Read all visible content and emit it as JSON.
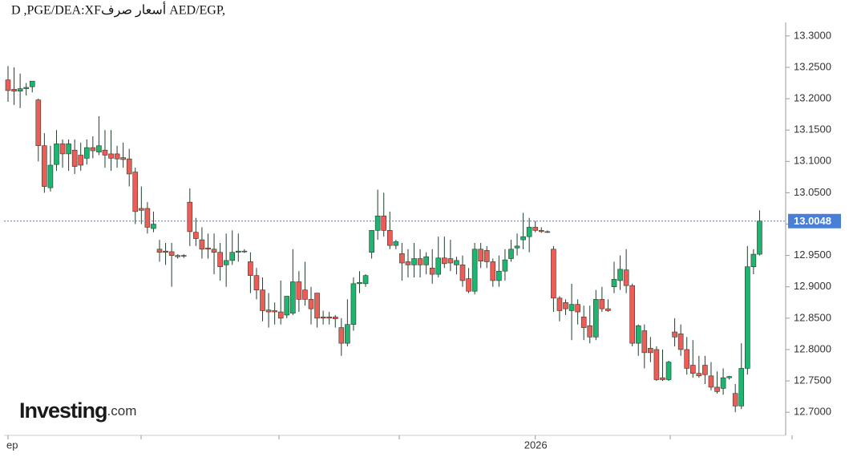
{
  "chart_data": {
    "type": "candlestick",
    "title": "D ,PGE/DEA:XFأسعار صرف AED/EGP,",
    "watermark": "Investing",
    "watermark_suffix": ".com",
    "categories": [
      "ep",
      null,
      null,
      null,
      null,
      null,
      null,
      null,
      null,
      null,
      null,
      null,
      null,
      null,
      null,
      null,
      null,
      null,
      null,
      null,
      null,
      null,
      null,
      null,
      null,
      null,
      null,
      null,
      null,
      null,
      null,
      null,
      null,
      null,
      null,
      null,
      null,
      null,
      null,
      null,
      null,
      null,
      null,
      null,
      null,
      null,
      null,
      null,
      null,
      null,
      null,
      null,
      null,
      null,
      null,
      null,
      null,
      null,
      null,
      null,
      null,
      null,
      null,
      null,
      null,
      null,
      null,
      null,
      null,
      null,
      null,
      null,
      null,
      null,
      null,
      null,
      null,
      null,
      null,
      null,
      null,
      null,
      null,
      null,
      null,
      null,
      null,
      "2026",
      null,
      null,
      null,
      null,
      null,
      null,
      null,
      null,
      null,
      null,
      null,
      null,
      null,
      null,
      null,
      null,
      null,
      null,
      null,
      null,
      null,
      null,
      null,
      null,
      null,
      null,
      null,
      null,
      null,
      null,
      null,
      null,
      null,
      null,
      null,
      null,
      null
    ],
    "open": [
      13.23,
      13.215,
      13.212,
      13.216,
      13.219,
      13.198,
      13.125,
      13.058,
      13.095,
      13.128,
      13.112,
      13.118,
      13.11,
      13.105,
      13.122,
      13.115,
      13.118,
      13.112,
      13.112,
      13.106,
      13.104,
      13.083,
      13.025,
      13.025,
      12.993,
      12.96,
      12.957,
      12.956,
      12.95,
      12.95,
      13.035,
      12.987,
      12.975,
      12.962,
      12.96,
      12.955,
      12.935,
      12.942,
      12.955,
      12.957,
      12.94,
      12.918,
      12.895,
      12.863,
      12.862,
      12.86,
      12.855,
      12.858,
      12.908,
      12.895,
      12.88,
      12.89,
      12.852,
      12.852,
      12.852,
      12.835,
      12.81,
      12.84,
      12.905,
      12.905,
      12.955,
      12.99,
      13.013,
      12.99,
      12.966,
      12.953,
      12.94,
      12.935,
      12.945,
      12.935,
      12.93,
      12.92,
      12.946,
      12.945,
      12.935,
      12.935,
      12.913,
      12.893,
      12.96,
      12.958,
      12.94,
      12.91,
      12.925,
      12.945,
      12.962,
      12.975,
      12.98,
      12.995,
      12.99,
      12.988,
      12.96,
      12.882,
      12.875,
      12.862,
      12.872,
      12.852,
      12.838,
      12.82,
      12.88,
      12.865,
      12.9,
      12.91,
      12.927,
      12.902,
      12.81,
      12.83,
      12.802,
      12.8,
      12.755,
      12.752,
      12.828,
      12.825,
      12.8,
      12.775,
      12.762,
      12.775,
      12.758,
      12.74,
      12.738,
      12.755,
      12.73,
      12.71,
      12.77,
      12.932,
      12.952
    ],
    "high": [
      13.252,
      13.25,
      13.24,
      13.225,
      13.228,
      13.2,
      13.145,
      13.125,
      13.15,
      13.135,
      13.135,
      13.135,
      13.13,
      13.135,
      13.14,
      13.172,
      13.15,
      13.15,
      13.125,
      13.13,
      13.12,
      13.09,
      13.06,
      13.035,
      13.02,
      12.975,
      12.97,
      12.97,
      12.952,
      12.952,
      13.057,
      13.01,
      12.995,
      12.985,
      12.985,
      12.97,
      12.985,
      12.99,
      12.985,
      12.96,
      12.955,
      12.93,
      12.915,
      12.89,
      12.875,
      12.91,
      12.88,
      12.96,
      12.925,
      12.94,
      12.9,
      12.89,
      12.862,
      12.86,
      12.855,
      12.85,
      12.88,
      12.915,
      12.925,
      12.92,
      12.99,
      13.055,
      13.05,
      13.02,
      12.975,
      12.97,
      12.96,
      12.97,
      12.96,
      12.955,
      12.96,
      12.98,
      12.98,
      12.975,
      12.948,
      12.95,
      12.93,
      12.97,
      12.97,
      12.965,
      12.945,
      12.95,
      12.96,
      12.975,
      12.985,
      13.018,
      13.01,
      13.005,
      12.995,
      12.99,
      12.965,
      12.885,
      12.88,
      12.905,
      12.88,
      12.87,
      12.87,
      12.895,
      12.9,
      12.88,
      12.94,
      12.95,
      12.96,
      12.905,
      12.84,
      12.84,
      12.82,
      12.805,
      12.8,
      12.782,
      12.85,
      12.84,
      12.82,
      12.815,
      12.79,
      12.79,
      12.78,
      12.765,
      12.77,
      12.758,
      12.745,
      12.81,
      12.965,
      12.96,
      13.022
    ],
    "low": [
      13.195,
      13.19,
      13.185,
      13.205,
      13.21,
      13.1,
      13.05,
      13.052,
      13.085,
      13.09,
      13.085,
      13.08,
      13.085,
      13.095,
      13.105,
      13.11,
      13.09,
      13.085,
      13.09,
      13.09,
      13.06,
      13.0,
      13.0,
      12.985,
      12.987,
      12.94,
      12.935,
      12.9,
      12.945,
      12.946,
      12.965,
      12.965,
      12.945,
      12.945,
      12.92,
      12.91,
      12.9,
      12.935,
      12.94,
      12.954,
      12.89,
      12.88,
      12.845,
      12.835,
      12.84,
      12.84,
      12.85,
      12.855,
      12.86,
      12.87,
      12.84,
      12.835,
      12.84,
      12.84,
      12.835,
      12.79,
      12.805,
      12.83,
      12.89,
      12.9,
      12.945,
      12.975,
      12.98,
      12.96,
      12.96,
      12.91,
      12.915,
      12.915,
      12.915,
      12.92,
      12.905,
      12.915,
      12.93,
      12.925,
      12.92,
      12.9,
      12.89,
      12.888,
      12.93,
      12.93,
      12.9,
      12.9,
      12.91,
      12.94,
      12.95,
      12.96,
      12.955,
      12.987,
      12.986,
      12.986,
      12.86,
      12.845,
      12.855,
      12.815,
      12.84,
      12.815,
      12.81,
      12.815,
      12.86,
      12.86,
      12.89,
      12.895,
      12.89,
      12.805,
      12.79,
      12.77,
      12.78,
      12.75,
      12.75,
      12.75,
      12.805,
      12.79,
      12.76,
      12.755,
      12.755,
      12.745,
      12.735,
      12.73,
      12.728,
      12.752,
      12.7,
      12.705,
      12.76,
      12.92,
      12.95
    ],
    "close": [
      13.213,
      13.212,
      13.216,
      13.218,
      13.228,
      13.125,
      13.06,
      13.094,
      13.128,
      13.112,
      13.128,
      13.092,
      13.094,
      13.122,
      13.117,
      13.125,
      13.11,
      13.105,
      13.104,
      13.103,
      13.08,
      13.02,
      13.022,
      12.995,
      13.0,
      12.955,
      12.955,
      12.95,
      12.948,
      12.949,
      12.988,
      12.977,
      12.96,
      12.96,
      12.955,
      12.932,
      12.942,
      12.955,
      12.957,
      12.956,
      12.918,
      12.895,
      12.862,
      12.86,
      12.86,
      12.85,
      12.885,
      12.908,
      12.88,
      12.88,
      12.865,
      12.85,
      12.85,
      12.85,
      12.849,
      12.81,
      12.84,
      12.905,
      12.907,
      12.918,
      12.99,
      13.013,
      12.99,
      12.966,
      12.972,
      12.938,
      12.935,
      12.945,
      12.935,
      12.948,
      12.92,
      12.946,
      12.937,
      12.938,
      12.942,
      12.91,
      12.893,
      12.96,
      12.941,
      12.94,
      12.91,
      12.925,
      12.943,
      12.96,
      12.965,
      12.98,
      12.995,
      12.99,
      12.988,
      12.987,
      12.882,
      12.862,
      12.865,
      12.872,
      12.86,
      12.835,
      12.82,
      12.88,
      12.865,
      12.862,
      12.912,
      12.928,
      12.902,
      12.81,
      12.838,
      12.795,
      12.795,
      12.752,
      12.752,
      12.78,
      12.82,
      12.8,
      12.77,
      12.762,
      12.758,
      12.76,
      12.74,
      12.733,
      12.755,
      12.757,
      12.71,
      12.77,
      12.932,
      12.952,
      13.005
    ],
    "up_color": "#1db56f",
    "down_color": "#ec5d57",
    "last_price": 13.0048,
    "last_price_color": "#4a7fd8",
    "ylim": [
      12.667,
      13.319
    ],
    "yticks": [
      {
        "value": 12.7,
        "label": "12.7000"
      },
      {
        "value": 12.75,
        "label": "12.7500"
      },
      {
        "value": 12.8,
        "label": "12.8000"
      },
      {
        "value": 12.85,
        "label": "12.8500"
      },
      {
        "value": 12.9,
        "label": "12.9000"
      },
      {
        "value": 12.95,
        "label": "12.9500"
      },
      {
        "value": 13.0,
        "label": "13.0000"
      },
      {
        "value": 13.05,
        "label": "13.0500"
      },
      {
        "value": 13.1,
        "label": "13.1000"
      },
      {
        "value": 13.15,
        "label": "13.1500"
      },
      {
        "value": 13.2,
        "label": "13.2000"
      },
      {
        "value": 13.25,
        "label": "13.2500"
      },
      {
        "value": 13.3,
        "label": "13.3000"
      }
    ]
  }
}
